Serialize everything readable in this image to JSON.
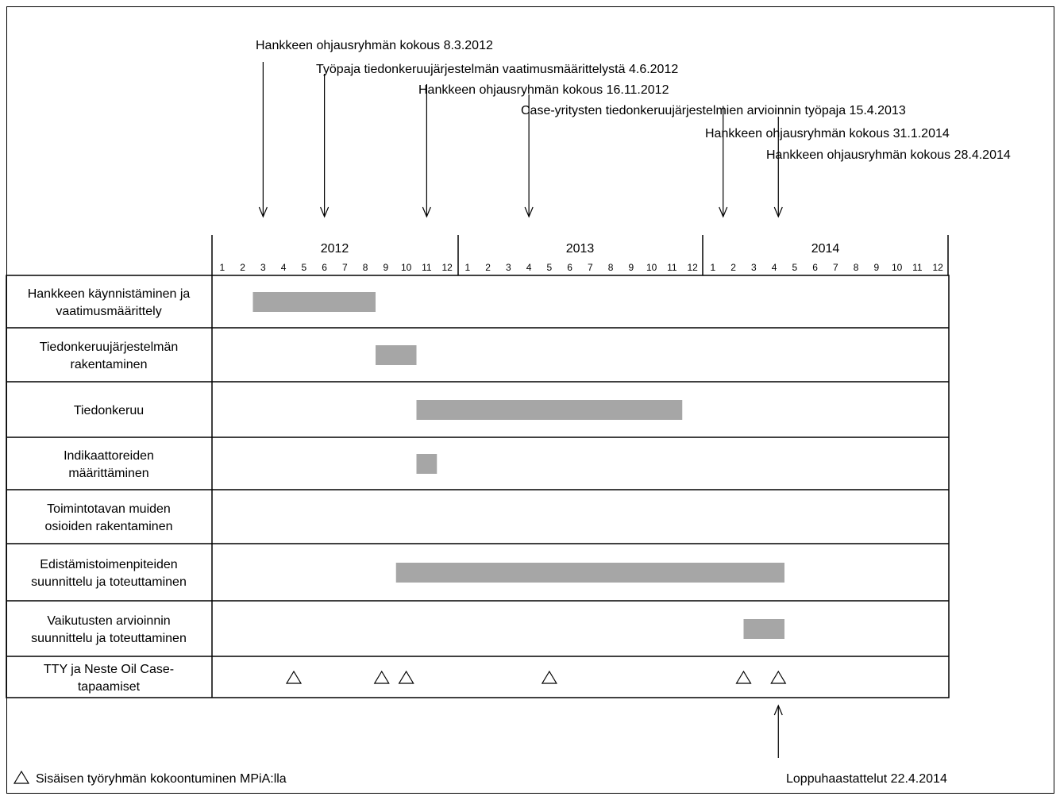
{
  "chart_data": {
    "type": "gantt",
    "years": [
      "2012",
      "2013",
      "2014"
    ],
    "months": [
      "1",
      "2",
      "3",
      "4",
      "5",
      "6",
      "7",
      "8",
      "9",
      "10",
      "11",
      "12"
    ],
    "milestones": [
      {
        "label": "Hankkeen ohjausryhmän kokous 8.3.2012",
        "month": 3.0
      },
      {
        "label": "Työpaja tiedonkeruujärjestelmän vaatimusmäärittelystä 4.6.2012",
        "month": 6.0
      },
      {
        "label": "Hankkeen ohjausryhmän kokous 16.11.2012",
        "month": 11.0
      },
      {
        "label": "Case-yritysten tiedonkeruujärjestelmien arvioinnin työpaja 15.4.2013",
        "month": 16.0
      },
      {
        "label": "Hankkeen ohjausryhmän kokous 31.1.2014",
        "month": 25.5
      },
      {
        "label": "Hankkeen ohjausryhmän kokous 28.4.2014",
        "month": 28.2
      }
    ],
    "tasks": [
      {
        "lines": [
          "Hankkeen käynnistäminen ja",
          "vaatimusmäärittely"
        ],
        "start": 2.5,
        "end": 8.5
      },
      {
        "lines": [
          "Tiedonkeruujärjestelmän",
          "rakentaminen"
        ],
        "start": 8.5,
        "end": 10.5
      },
      {
        "lines": [
          "Tiedonkeruu"
        ],
        "start": 10.5,
        "end": 23.5
      },
      {
        "lines": [
          "Indikaattoreiden",
          "määrittäminen"
        ],
        "start": 10.5,
        "end": 11.5
      },
      {
        "lines": [
          "Toimintotavan muiden",
          "osioiden rakentaminen"
        ],
        "start": null,
        "end": null
      },
      {
        "lines": [
          "Edistämistoimenpiteiden",
          "suunnittelu ja toteuttaminen"
        ],
        "start": 9.5,
        "end": 28.5
      },
      {
        "lines": [
          "Vaikutusten arvioinnin",
          "suunnittelu ja toteuttaminen"
        ],
        "start": 26.5,
        "end": 28.5
      },
      {
        "lines": [
          "TTY ja Neste Oil Case-",
          "tapaamiset"
        ],
        "start": null,
        "end": null
      }
    ],
    "meetings": [
      4.5,
      8.8,
      10.0,
      17.0,
      26.5,
      28.2
    ],
    "final_event": {
      "label": "Loppuhaastattelut 22.4.2014",
      "month": 28.2
    },
    "legend": {
      "symbol": "△",
      "text": "Sisäisen työryhmän kokoontuminen MPiA:lla"
    },
    "colors": {
      "bar": "#a6a6a6",
      "line": "#000000"
    }
  }
}
